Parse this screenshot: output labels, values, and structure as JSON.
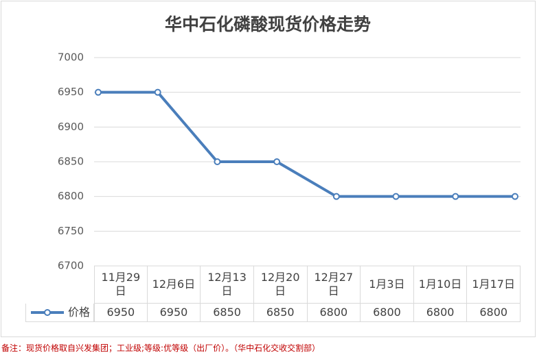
{
  "chart_data": {
    "type": "line",
    "title": "华中石化磷酸现货价格走势",
    "categories": [
      "11月29日",
      "12月6日",
      "12月13日",
      "12月20日",
      "12月27日",
      "1月3日",
      "1月10日",
      "1月17日"
    ],
    "series": [
      {
        "name": "价格",
        "color": "#4a7ebb",
        "values": [
          6950,
          6950,
          6850,
          6850,
          6800,
          6800,
          6800,
          6800
        ]
      }
    ],
    "ylim": [
      6700,
      7000
    ],
    "yticks": [
      6700,
      6750,
      6800,
      6850,
      6900,
      6950,
      7000
    ],
    "grid": true,
    "note": "备注：现货价格取自兴发集团；工业级;等级:优等级（出厂价）。（华中石化交收交割部）"
  }
}
